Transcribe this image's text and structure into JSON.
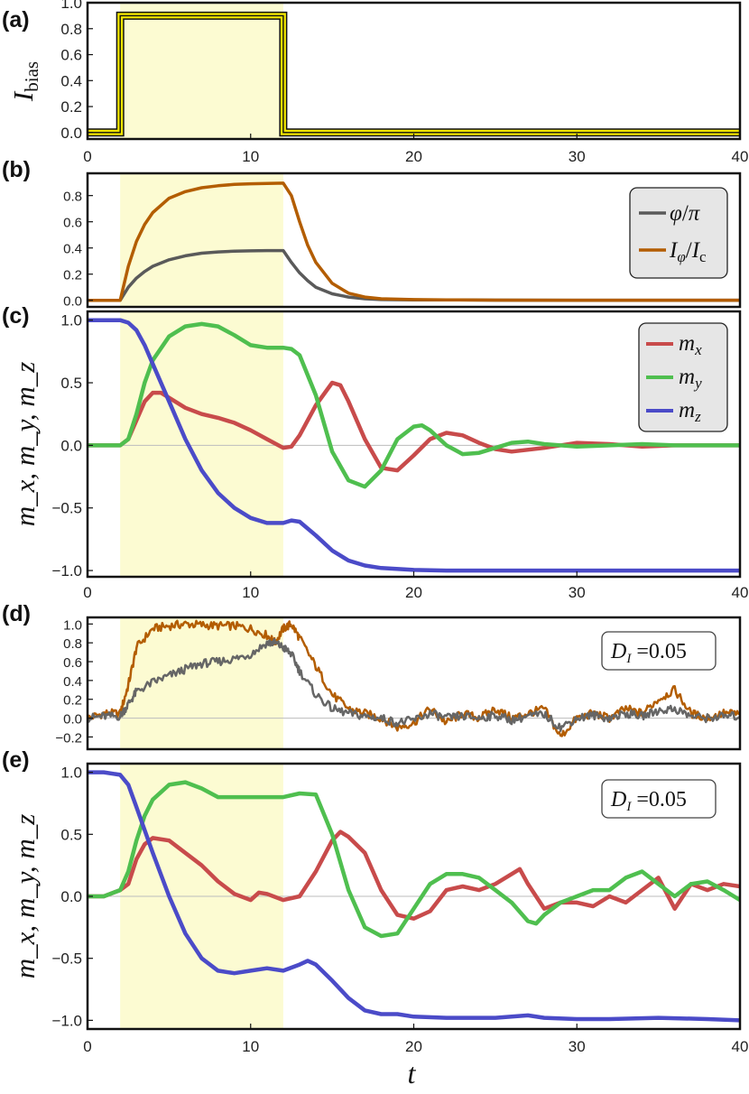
{
  "figure": {
    "shared_xlabel": "t"
  },
  "chart_data": [
    {
      "panel": "(a)",
      "type": "line",
      "ylabel": "I",
      "ylabel_sub": "bias",
      "xlim": [
        0,
        40
      ],
      "ylim": [
        -0.05,
        1.0
      ],
      "xticks": [
        "0",
        "10",
        "20",
        "30",
        "40"
      ],
      "yticks": [
        "0.0",
        "0.2",
        "0.4",
        "0.6",
        "0.8",
        "1.0"
      ],
      "shaded_interval": [
        2,
        12
      ],
      "series": [
        {
          "color": "#f2e600",
          "x": [
            0,
            2,
            2,
            12,
            12,
            40
          ],
          "y": [
            0,
            0,
            0.9,
            0.9,
            0,
            0
          ]
        }
      ]
    },
    {
      "panel": "(b)",
      "type": "line",
      "xlim": [
        0,
        40
      ],
      "ylim": [
        -0.05,
        0.97
      ],
      "yticks": [
        "0.0",
        "0.2",
        "0.4",
        "0.6",
        "0.8"
      ],
      "shaded_interval": [
        2,
        12
      ],
      "legend": [
        {
          "sym": "φ",
          "mid": "/",
          "sym2": "π",
          "sub": "",
          "sub2": ""
        },
        {
          "sym": "I",
          "sub": "φ",
          "mid": "/",
          "sym2": "I",
          "sub2": "c"
        }
      ],
      "legend_position": "top-right",
      "series": [
        {
          "color": "#5a5a5a",
          "x": [
            0,
            2,
            2.5,
            3,
            3.5,
            4,
            5,
            6,
            7,
            8,
            9,
            10,
            11,
            12,
            12.5,
            13,
            13.5,
            14,
            15,
            16,
            17,
            18,
            20,
            22,
            25,
            30,
            35,
            40
          ],
          "y": [
            0,
            0,
            0.1,
            0.17,
            0.22,
            0.26,
            0.31,
            0.34,
            0.36,
            0.37,
            0.375,
            0.378,
            0.38,
            0.38,
            0.29,
            0.21,
            0.15,
            0.1,
            0.05,
            0.025,
            0.012,
            0.006,
            0.003,
            0.004,
            0.002,
            0.001,
            0.001,
            0.001
          ]
        },
        {
          "color": "#b35d00",
          "x": [
            0,
            2,
            2.5,
            3,
            3.5,
            4,
            5,
            6,
            7,
            8,
            9,
            10,
            11,
            12,
            12.5,
            13,
            13.5,
            14,
            15,
            16,
            17,
            18,
            20,
            22,
            25,
            30,
            35,
            40
          ],
          "y": [
            0,
            0,
            0.26,
            0.45,
            0.58,
            0.67,
            0.78,
            0.83,
            0.86,
            0.875,
            0.885,
            0.89,
            0.893,
            0.895,
            0.8,
            0.6,
            0.42,
            0.29,
            0.13,
            0.055,
            0.025,
            0.012,
            0.006,
            0.004,
            0.002,
            0.001,
            0.001,
            0.001
          ]
        }
      ]
    },
    {
      "panel": "(c)",
      "type": "line",
      "ylabel": "m_x, m_y, m_z",
      "xlim": [
        0,
        40
      ],
      "ylim": [
        -1.05,
        1.07
      ],
      "xticks": [
        "0",
        "10",
        "20",
        "30",
        "40"
      ],
      "yticks": [
        "1.0",
        "0.5",
        "0.0",
        "−0.5",
        "−1.0"
      ],
      "shaded_interval": [
        2,
        12
      ],
      "legend": [
        {
          "sym": "m",
          "sub": "x"
        },
        {
          "sym": "m",
          "sub": "y"
        },
        {
          "sym": "m",
          "sub": "z"
        }
      ],
      "legend_position": "top-right",
      "series": [
        {
          "color": "#c84b4b",
          "x": [
            0,
            2,
            2.5,
            3,
            3.5,
            4,
            4.5,
            5,
            6,
            7,
            8,
            9,
            10,
            11,
            12,
            12.5,
            13,
            14,
            15,
            15.5,
            16,
            17,
            18,
            19,
            20,
            21,
            22,
            23,
            24,
            25,
            26,
            28,
            30,
            32,
            34,
            36,
            38,
            40
          ],
          "y": [
            0,
            0,
            0.05,
            0.2,
            0.35,
            0.42,
            0.42,
            0.38,
            0.3,
            0.25,
            0.22,
            0.18,
            0.12,
            0.05,
            -0.02,
            -0.01,
            0.08,
            0.32,
            0.5,
            0.48,
            0.35,
            0.05,
            -0.18,
            -0.2,
            -0.08,
            0.05,
            0.1,
            0.08,
            0.02,
            -0.03,
            -0.05,
            -0.02,
            0.02,
            0.01,
            -0.01,
            0.0,
            0.0,
            0.0
          ]
        },
        {
          "color": "#4fbf4f",
          "x": [
            0,
            2,
            2.5,
            3,
            3.5,
            4,
            5,
            6,
            7,
            8,
            9,
            10,
            11,
            12,
            12.5,
            13,
            14,
            15,
            16,
            17,
            18,
            19,
            20,
            20.5,
            21,
            22,
            23,
            24,
            25,
            26,
            27,
            28,
            30,
            32,
            34,
            36,
            38,
            40
          ],
          "y": [
            0,
            0,
            0.05,
            0.25,
            0.5,
            0.68,
            0.87,
            0.95,
            0.97,
            0.95,
            0.88,
            0.8,
            0.78,
            0.78,
            0.77,
            0.72,
            0.4,
            -0.05,
            -0.28,
            -0.33,
            -0.2,
            0.05,
            0.15,
            0.16,
            0.12,
            0.0,
            -0.07,
            -0.06,
            -0.02,
            0.02,
            0.03,
            0.01,
            -0.01,
            0.0,
            0.01,
            0.0,
            0.0,
            0.0
          ]
        },
        {
          "color": "#4b4bc8",
          "x": [
            0,
            2,
            2.5,
            3,
            3.5,
            4,
            5,
            6,
            7,
            8,
            9,
            10,
            11,
            12,
            12.5,
            13,
            14,
            15,
            16,
            17,
            18,
            20,
            22,
            25,
            30,
            35,
            40
          ],
          "y": [
            1.0,
            1.0,
            0.98,
            0.92,
            0.8,
            0.65,
            0.35,
            0.05,
            -0.2,
            -0.38,
            -0.5,
            -0.58,
            -0.62,
            -0.62,
            -0.6,
            -0.61,
            -0.72,
            -0.84,
            -0.92,
            -0.96,
            -0.98,
            -0.995,
            -1.0,
            -1.0,
            -1.0,
            -1.0,
            -1.0
          ]
        }
      ]
    },
    {
      "panel": "(d)",
      "type": "line",
      "xlim": [
        0,
        40
      ],
      "ylim": [
        -0.33,
        1.07
      ],
      "yticks": [
        "1.0",
        "0.8",
        "0.6",
        "0.4",
        "0.2",
        "0.0",
        "−0.2"
      ],
      "shaded_interval": [
        2,
        12
      ],
      "annotation": {
        "sym": "D",
        "sub": "I",
        "text": " =0.05"
      },
      "series": [
        {
          "color": "#b35d00",
          "x": [
            0,
            1,
            2,
            2.5,
            3,
            4,
            5,
            6,
            7,
            8,
            9,
            10,
            11,
            11.5,
            12,
            12.5,
            13,
            14,
            15,
            16,
            17,
            18,
            19,
            20,
            21,
            22,
            23,
            24,
            25,
            26,
            27,
            28,
            29,
            30,
            31,
            32,
            33,
            34,
            35,
            36,
            37,
            38,
            39,
            40
          ],
          "y": [
            0.0,
            0.05,
            0.05,
            0.35,
            0.75,
            0.95,
            0.98,
            1.0,
            0.99,
            0.98,
            0.98,
            0.95,
            0.88,
            0.8,
            0.95,
            1.0,
            0.85,
            0.55,
            0.25,
            0.1,
            0.05,
            0.0,
            -0.1,
            -0.05,
            0.1,
            -0.05,
            0.05,
            0.0,
            0.1,
            0.0,
            0.05,
            0.1,
            -0.2,
            0.0,
            0.05,
            0.0,
            0.1,
            0.05,
            0.2,
            0.3,
            0.05,
            0.0,
            0.05,
            0.05
          ]
        },
        {
          "color": "#666666",
          "x": [
            0,
            1,
            2,
            2.5,
            3,
            4,
            5,
            6,
            7,
            8,
            9,
            10,
            11,
            11.5,
            12,
            12.5,
            13,
            14,
            15,
            16,
            17,
            18,
            19,
            20,
            21,
            22,
            23,
            24,
            25,
            26,
            27,
            28,
            29,
            30,
            31,
            32,
            33,
            34,
            35,
            36,
            37,
            38,
            39,
            40
          ],
          "y": [
            0.0,
            0.02,
            0.02,
            0.15,
            0.28,
            0.38,
            0.45,
            0.52,
            0.58,
            0.6,
            0.63,
            0.68,
            0.8,
            0.8,
            0.75,
            0.68,
            0.5,
            0.25,
            0.1,
            0.05,
            0.02,
            0.0,
            -0.05,
            -0.02,
            0.05,
            0.0,
            0.02,
            0.0,
            0.03,
            -0.02,
            0.02,
            0.04,
            -0.1,
            0.0,
            0.03,
            0.0,
            0.05,
            0.02,
            0.08,
            0.1,
            0.02,
            0.0,
            0.02,
            0.02
          ]
        }
      ]
    },
    {
      "panel": "(e)",
      "type": "line",
      "ylabel": "m_x, m_y, m_z",
      "xlim": [
        0,
        40
      ],
      "ylim": [
        -1.07,
        1.07
      ],
      "xticks": [
        "0",
        "10",
        "20",
        "30",
        "40"
      ],
      "yticks": [
        "1.0",
        "0.5",
        "0.0",
        "−0.5",
        "−1.0"
      ],
      "shaded_interval": [
        2,
        12
      ],
      "annotation": {
        "sym": "D",
        "sub": "I",
        "text": " =0.05"
      },
      "series": [
        {
          "color": "#c84b4b",
          "x": [
            0,
            1,
            2,
            2.5,
            3,
            3.5,
            4,
            5,
            6,
            7,
            8,
            9,
            10,
            10.5,
            11,
            12,
            13,
            14,
            15,
            15.5,
            16,
            17,
            18,
            19,
            20,
            21,
            22,
            23,
            24,
            25,
            26,
            26.5,
            27,
            28,
            29,
            30,
            31,
            32,
            33,
            34,
            35,
            36,
            37,
            38,
            39,
            40
          ],
          "y": [
            0.0,
            0.0,
            0.05,
            0.1,
            0.3,
            0.42,
            0.47,
            0.45,
            0.35,
            0.25,
            0.12,
            0.02,
            -0.03,
            0.03,
            0.02,
            -0.03,
            0.0,
            0.2,
            0.45,
            0.52,
            0.48,
            0.35,
            0.05,
            -0.15,
            -0.18,
            -0.12,
            0.05,
            0.08,
            0.05,
            0.1,
            0.18,
            0.22,
            0.1,
            -0.1,
            -0.05,
            -0.05,
            -0.08,
            0.0,
            -0.05,
            0.05,
            0.15,
            -0.1,
            0.1,
            0.05,
            0.1,
            0.08
          ]
        },
        {
          "color": "#4fbf4f",
          "x": [
            0,
            1,
            2,
            2.5,
            3,
            3.5,
            4,
            5,
            6,
            7,
            8,
            9,
            10,
            11,
            12,
            13,
            14,
            15,
            16,
            17,
            18,
            19,
            20,
            21,
            22,
            23,
            24,
            25,
            26,
            27,
            27.5,
            28,
            29,
            30,
            31,
            32,
            33,
            34,
            35,
            36,
            37,
            38,
            39,
            40
          ],
          "y": [
            0.0,
            0.0,
            0.05,
            0.2,
            0.45,
            0.65,
            0.78,
            0.9,
            0.92,
            0.87,
            0.8,
            0.8,
            0.8,
            0.8,
            0.8,
            0.83,
            0.82,
            0.5,
            0.05,
            -0.25,
            -0.32,
            -0.3,
            -0.1,
            0.1,
            0.18,
            0.18,
            0.15,
            0.05,
            -0.05,
            -0.2,
            -0.22,
            -0.15,
            -0.05,
            0.0,
            0.05,
            0.05,
            0.15,
            0.2,
            0.1,
            0.0,
            0.1,
            0.12,
            0.05,
            -0.03
          ]
        },
        {
          "color": "#4b4bc8",
          "x": [
            0,
            1,
            2,
            2.5,
            3,
            4,
            5,
            6,
            7,
            8,
            9,
            10,
            11,
            12,
            13,
            13.5,
            14,
            15,
            16,
            17,
            18,
            19,
            20,
            22,
            25,
            27,
            28,
            30,
            32,
            35,
            38,
            40
          ],
          "y": [
            1.0,
            1.0,
            0.98,
            0.9,
            0.72,
            0.35,
            0.0,
            -0.3,
            -0.5,
            -0.6,
            -0.62,
            -0.6,
            -0.58,
            -0.6,
            -0.55,
            -0.52,
            -0.55,
            -0.68,
            -0.82,
            -0.92,
            -0.95,
            -0.95,
            -0.97,
            -0.98,
            -0.98,
            -0.96,
            -0.98,
            -0.99,
            -0.99,
            -0.98,
            -0.99,
            -1.0
          ]
        }
      ]
    }
  ]
}
